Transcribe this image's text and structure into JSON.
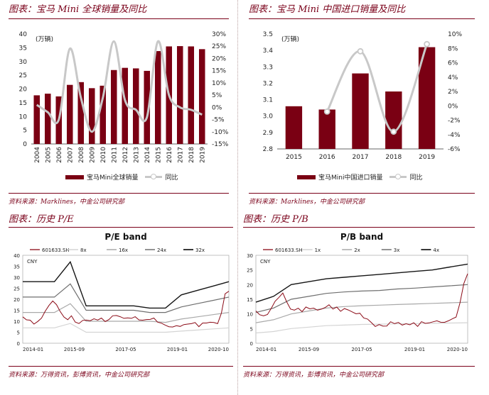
{
  "panels": {
    "p1": {
      "title": "图表：宝马 Mini 全球销量及同比",
      "source": "资料来源：Marklines，中金公司研究部"
    },
    "p2": {
      "title": "图表：宝马 Mini 中国进口销量及同比",
      "source": "资料来源：Marklines，中金公司研究部"
    },
    "p3": {
      "title": "图表：历史 P/E",
      "source": "资料来源：万得资讯，彭博资讯，中金公司研究部"
    },
    "p4": {
      "title": "图表：历史 P/B",
      "source": "资料来源：万得资讯，彭博资讯，中金公司研究部"
    }
  },
  "colors": {
    "bar": "#7a0013",
    "yoy": "#c8c8c8",
    "stock": "#8b0a16",
    "accent": "#7a0019"
  },
  "chart_data": [
    {
      "type": "bar",
      "unit_label": "(万辆)",
      "categories": [
        "2004",
        "2005",
        "2006",
        "2007",
        "2008",
        "2009",
        "2010",
        "2011",
        "2012",
        "2013",
        "2014",
        "2015",
        "2016",
        "2017",
        "2018",
        "2019"
      ],
      "series": [
        {
          "name": "宝马Mini全球销量",
          "type": "bar",
          "axis": "left",
          "values": [
            17.7,
            18.3,
            17.3,
            21.5,
            22.5,
            20.3,
            21.2,
            26.9,
            27.7,
            27.5,
            26.6,
            33.8,
            35.5,
            35.6,
            35.5,
            34.5
          ]
        },
        {
          "name": "同比",
          "type": "line",
          "axis": "right",
          "values": [
            1,
            -2,
            -5,
            24,
            4,
            -10,
            4,
            27,
            3,
            -1,
            -4,
            27,
            5,
            0,
            -1,
            -3
          ]
        }
      ],
      "ylim_left": [
        0,
        40
      ],
      "yticks_left": [
        "0",
        "5",
        "10",
        "15",
        "20",
        "25",
        "30",
        "35",
        "40"
      ],
      "ylim_right": [
        -15,
        30
      ],
      "yticks_right": [
        "-15%",
        "-10%",
        "-5%",
        "0%",
        "5%",
        "10%",
        "15%",
        "20%",
        "25%",
        "30%"
      ]
    },
    {
      "type": "bar",
      "unit_label": "(万辆)",
      "categories": [
        "2015",
        "2016",
        "2017",
        "2018",
        "2019"
      ],
      "series": [
        {
          "name": "宝马Mini中国进口销量",
          "type": "bar",
          "axis": "left",
          "values": [
            3.06,
            3.04,
            3.26,
            3.15,
            3.42
          ]
        },
        {
          "name": "同比",
          "type": "line",
          "axis": "right",
          "values": [
            null,
            -0.8,
            7.6,
            -3.6,
            8.6
          ]
        }
      ],
      "ylim_left": [
        2.8,
        3.5
      ],
      "yticks_left": [
        "2.8",
        "2.9",
        "3.0",
        "3.1",
        "3.2",
        "3.3",
        "3.4",
        "3.5"
      ],
      "ylim_right": [
        -6,
        10
      ],
      "yticks_right": [
        "-6%",
        "-4%",
        "-2%",
        "0%",
        "2%",
        "4%",
        "6%",
        "8%",
        "10%"
      ]
    },
    {
      "type": "line",
      "title": "P/E band",
      "unit_label": "CNY",
      "x_ticks": [
        "2014-01",
        "2015-09",
        "2017-05",
        "2019-01",
        "2020-10"
      ],
      "ylim": [
        0,
        40
      ],
      "yticks": [
        "0",
        "5",
        "10",
        "15",
        "20",
        "25",
        "30",
        "35",
        "40"
      ],
      "series": [
        {
          "name": "601633.SH",
          "style": "stock",
          "values": [
            12,
            11,
            10,
            9,
            10,
            11,
            15,
            17,
            19,
            18,
            14,
            12,
            11,
            12,
            10,
            9,
            10,
            11,
            10,
            11,
            11,
            11,
            10,
            11,
            12,
            13,
            12,
            11,
            12,
            11,
            12,
            11,
            10,
            11,
            11,
            11,
            10,
            9,
            8,
            8,
            7,
            8,
            8,
            8,
            9,
            9,
            9,
            8,
            9,
            9,
            10,
            9,
            9,
            14,
            22,
            24
          ]
        },
        {
          "name": "8x",
          "style": "band1",
          "values": [
            7,
            7,
            7,
            9,
            5,
            5,
            5,
            5,
            5,
            5,
            5.5,
            6,
            6.5,
            7
          ]
        },
        {
          "name": "16x",
          "style": "band2",
          "values": [
            14,
            14,
            14,
            18,
            10,
            10,
            10,
            10,
            10,
            9.5,
            11,
            12,
            13,
            14
          ]
        },
        {
          "name": "24x",
          "style": "band3",
          "values": [
            21,
            21,
            21,
            27,
            15,
            15,
            15,
            15,
            14,
            14,
            16.5,
            18,
            19.5,
            21
          ]
        },
        {
          "name": "32x",
          "style": "band4",
          "values": [
            28,
            28,
            28,
            37,
            17,
            17,
            17,
            17,
            16,
            16,
            22,
            24,
            26,
            28
          ]
        }
      ]
    },
    {
      "type": "line",
      "title": "P/B band",
      "unit_label": "CNY",
      "x_ticks": [
        "2014-01",
        "2015-09",
        "2017-05",
        "2019-01",
        "2020-10"
      ],
      "ylim": [
        0,
        30
      ],
      "yticks": [
        "0",
        "5",
        "10",
        "15",
        "20",
        "25",
        "30"
      ],
      "series": [
        {
          "name": "601633.SH",
          "style": "stock",
          "values": [
            11,
            10,
            9,
            10,
            12,
            14,
            16,
            17,
            14,
            12,
            11,
            12,
            11,
            12,
            12,
            12,
            11,
            12,
            12,
            13,
            12,
            12,
            11,
            12,
            11,
            11,
            10,
            10,
            9,
            8,
            7,
            6,
            6,
            6,
            6,
            7,
            7,
            7,
            6,
            7,
            6,
            7,
            6,
            7,
            7,
            7,
            7,
            8,
            7,
            7,
            8,
            8,
            9,
            14,
            20,
            24
          ]
        },
        {
          "name": "1x",
          "style": "band1",
          "values": [
            3.5,
            4,
            5,
            5.5,
            6,
            6.2,
            6.4,
            6.5,
            6.6,
            6.7,
            6.8,
            6.9,
            7
          ]
        },
        {
          "name": "2x",
          "style": "band2",
          "values": [
            7,
            8,
            10,
            11,
            12,
            12.5,
            12.8,
            13,
            13.2,
            13.4,
            13.6,
            13.8,
            14
          ]
        },
        {
          "name": "3x",
          "style": "band3",
          "values": [
            10.5,
            12,
            15,
            16,
            17,
            17.5,
            17.8,
            18,
            18.5,
            18.8,
            19.2,
            19.6,
            20
          ]
        },
        {
          "name": "4x",
          "style": "band4",
          "values": [
            14,
            16,
            20,
            21,
            22,
            22.5,
            23,
            23.5,
            24,
            24.5,
            25,
            26,
            27
          ]
        }
      ]
    }
  ]
}
